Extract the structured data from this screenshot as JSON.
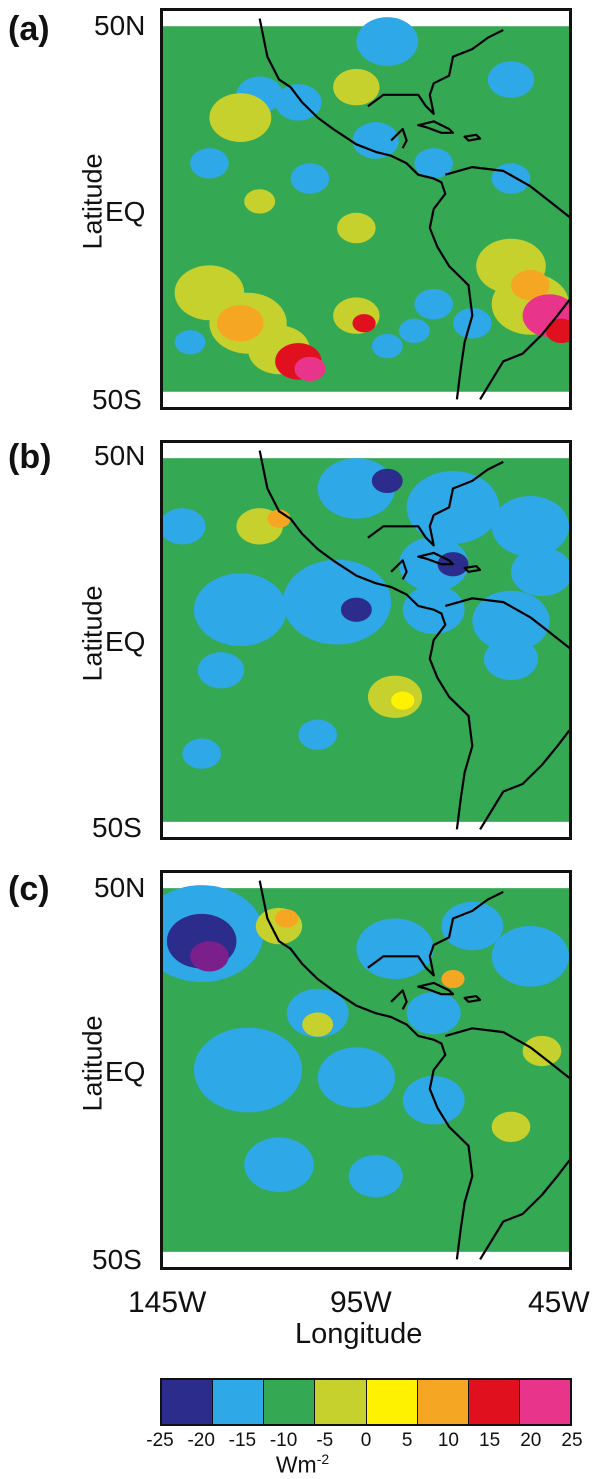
{
  "panels": [
    {
      "label": "(a)",
      "lat_top": "50N",
      "lat_mid": "EQ",
      "lat_bottom": "50S",
      "ylabel": "Latitude",
      "base_level": 2,
      "anomalies": [
        {
          "lon": -92,
          "lat": 44,
          "r": 8,
          "level": 1
        },
        {
          "lon": -125,
          "lat": 30,
          "r": 6,
          "level": 1
        },
        {
          "lon": -130,
          "lat": 24,
          "r": 8,
          "level": 3
        },
        {
          "lon": -100,
          "lat": 32,
          "r": 6,
          "level": 3
        },
        {
          "lon": -115,
          "lat": 28,
          "r": 6,
          "level": 1
        },
        {
          "lon": -60,
          "lat": 34,
          "r": 6,
          "level": 1
        },
        {
          "lon": -138,
          "lat": 12,
          "r": 5,
          "level": 1
        },
        {
          "lon": -112,
          "lat": 8,
          "r": 5,
          "level": 1
        },
        {
          "lon": -95,
          "lat": 18,
          "r": 6,
          "level": 1
        },
        {
          "lon": -80,
          "lat": 12,
          "r": 5,
          "level": 1
        },
        {
          "lon": -60,
          "lat": 8,
          "r": 5,
          "level": 1
        },
        {
          "lon": -125,
          "lat": 2,
          "r": 4,
          "level": 3
        },
        {
          "lon": -100,
          "lat": -5,
          "r": 5,
          "level": 3
        },
        {
          "lon": -138,
          "lat": -22,
          "r": 9,
          "level": 3
        },
        {
          "lon": -128,
          "lat": -30,
          "r": 10,
          "level": 3
        },
        {
          "lon": -120,
          "lat": -37,
          "r": 8,
          "level": 3
        },
        {
          "lon": -130,
          "lat": -30,
          "r": 6,
          "level": 5
        },
        {
          "lon": -115,
          "lat": -40,
          "r": 6,
          "level": 6
        },
        {
          "lon": -112,
          "lat": -42,
          "r": 4,
          "level": 7
        },
        {
          "lon": -100,
          "lat": -28,
          "r": 6,
          "level": 3
        },
        {
          "lon": -98,
          "lat": -30,
          "r": 3,
          "level": 6
        },
        {
          "lon": -92,
          "lat": -36,
          "r": 4,
          "level": 1
        },
        {
          "lon": -85,
          "lat": -32,
          "r": 4,
          "level": 1
        },
        {
          "lon": -80,
          "lat": -25,
          "r": 5,
          "level": 1
        },
        {
          "lon": -143,
          "lat": -35,
          "r": 4,
          "level": 1
        },
        {
          "lon": -60,
          "lat": -15,
          "r": 9,
          "level": 3
        },
        {
          "lon": -55,
          "lat": -25,
          "r": 10,
          "level": 3
        },
        {
          "lon": -55,
          "lat": -20,
          "r": 5,
          "level": 5
        },
        {
          "lon": -50,
          "lat": -28,
          "r": 7,
          "level": 7
        },
        {
          "lon": -47,
          "lat": -32,
          "r": 4,
          "level": 6
        },
        {
          "lon": -70,
          "lat": -30,
          "r": 5,
          "level": 1
        }
      ]
    },
    {
      "label": "(b)",
      "lat_top": "50N",
      "lat_mid": "EQ",
      "lat_bottom": "50S",
      "ylabel": "Latitude",
      "base_level": 2,
      "anomalies": [
        {
          "lon": -100,
          "lat": 40,
          "r": 10,
          "level": 1
        },
        {
          "lon": -75,
          "lat": 35,
          "r": 12,
          "level": 1
        },
        {
          "lon": -55,
          "lat": 30,
          "r": 10,
          "level": 1
        },
        {
          "lon": -92,
          "lat": 42,
          "r": 4,
          "level": 0
        },
        {
          "lon": -80,
          "lat": 20,
          "r": 9,
          "level": 1
        },
        {
          "lon": -75,
          "lat": 20,
          "r": 4,
          "level": 0
        },
        {
          "lon": -105,
          "lat": 10,
          "r": 14,
          "level": 1
        },
        {
          "lon": -130,
          "lat": 8,
          "r": 12,
          "level": 1
        },
        {
          "lon": -80,
          "lat": 8,
          "r": 8,
          "level": 1
        },
        {
          "lon": -60,
          "lat": 5,
          "r": 10,
          "level": 1
        },
        {
          "lon": -52,
          "lat": 18,
          "r": 8,
          "level": 1
        },
        {
          "lon": -100,
          "lat": 8,
          "r": 4,
          "level": 0
        },
        {
          "lon": -125,
          "lat": 30,
          "r": 6,
          "level": 3
        },
        {
          "lon": -120,
          "lat": 32,
          "r": 3,
          "level": 5
        },
        {
          "lon": -90,
          "lat": -15,
          "r": 7,
          "level": 3
        },
        {
          "lon": -88,
          "lat": -16,
          "r": 3,
          "level": 4
        },
        {
          "lon": -60,
          "lat": -5,
          "r": 7,
          "level": 1
        },
        {
          "lon": -135,
          "lat": -8,
          "r": 6,
          "level": 1
        },
        {
          "lon": -110,
          "lat": -25,
          "r": 5,
          "level": 1
        },
        {
          "lon": -140,
          "lat": -30,
          "r": 5,
          "level": 1
        },
        {
          "lon": -145,
          "lat": 30,
          "r": 6,
          "level": 1
        }
      ]
    },
    {
      "label": "(c)",
      "lat_top": "50N",
      "lat_mid": "EQ",
      "lat_bottom": "50S",
      "ylabel": "Latitude",
      "base_level": 2,
      "anomalies": [
        {
          "lon": -140,
          "lat": 36,
          "r": 16,
          "level": 1
        },
        {
          "lon": -140,
          "lat": 34,
          "r": 9,
          "level": 0
        },
        {
          "lon": -138,
          "lat": 30,
          "r": 5,
          "level": -1
        },
        {
          "lon": -120,
          "lat": 38,
          "r": 6,
          "level": 3
        },
        {
          "lon": -118,
          "lat": 40,
          "r": 3,
          "level": 5
        },
        {
          "lon": -90,
          "lat": 32,
          "r": 10,
          "level": 1
        },
        {
          "lon": -70,
          "lat": 38,
          "r": 8,
          "level": 1
        },
        {
          "lon": -55,
          "lat": 30,
          "r": 10,
          "level": 1
        },
        {
          "lon": -110,
          "lat": 15,
          "r": 8,
          "level": 1
        },
        {
          "lon": -80,
          "lat": 15,
          "r": 7,
          "level": 1
        },
        {
          "lon": -128,
          "lat": 0,
          "r": 14,
          "level": 1
        },
        {
          "lon": -100,
          "lat": -2,
          "r": 10,
          "level": 1
        },
        {
          "lon": -80,
          "lat": -8,
          "r": 8,
          "level": 1
        },
        {
          "lon": -110,
          "lat": 12,
          "r": 4,
          "level": 3
        },
        {
          "lon": -120,
          "lat": -25,
          "r": 9,
          "level": 1
        },
        {
          "lon": -95,
          "lat": -28,
          "r": 7,
          "level": 1
        },
        {
          "lon": -60,
          "lat": -15,
          "r": 5,
          "level": 3
        },
        {
          "lon": -52,
          "lat": 5,
          "r": 5,
          "level": 3
        },
        {
          "lon": -75,
          "lat": 24,
          "r": 3,
          "level": 5
        }
      ]
    }
  ],
  "xaxis": {
    "ticks": [
      "145W",
      "95W",
      "45W"
    ],
    "label": "Longitude"
  },
  "colorbar": {
    "colors": [
      "#2b2c8c",
      "#2ea8e6",
      "#34a853",
      "#c6d12e",
      "#fff200",
      "#f5a623",
      "#e0101f",
      "#e8348a"
    ],
    "ticks": [
      "-25",
      "-20",
      "-15",
      "-10",
      "-5",
      "0",
      "5",
      "10",
      "15",
      "20",
      "25"
    ],
    "units_base": "Wm",
    "units_exp": "-2"
  },
  "extra_color": "#7a1f8c",
  "coastline_color": "#000000"
}
